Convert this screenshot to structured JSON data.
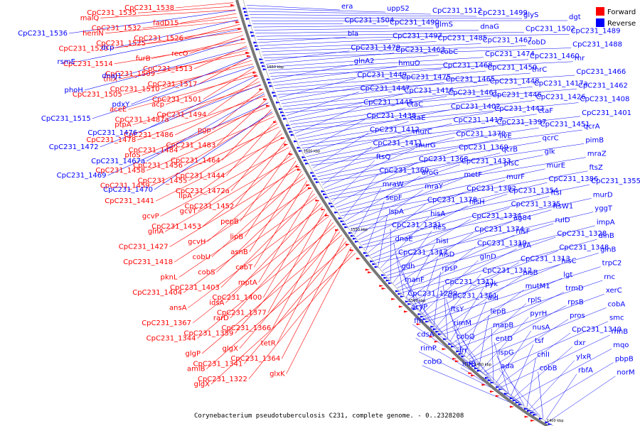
{
  "title": "Corynebacterium pseudotuberculosis C231, complete genome. - 0..2328208",
  "legend": {
    "items": [
      {
        "label": "Forward",
        "color": "#ff0000"
      },
      {
        "label": "Reverse",
        "color": "#0000ff"
      }
    ]
  },
  "colors": {
    "forward": "#ff0000",
    "reverse": "#0000ff",
    "axis": "#777777"
  },
  "ticks": [
    "1650 kbp",
    "1600 kbp",
    "1550 kbp",
    "1500 kbp",
    "1450 kbp",
    "1400 kbp"
  ],
  "forward_labels": [
    "CpC231_1538",
    "CpC231_1535",
    "malQ",
    "fadD15",
    "CpC231_1532",
    "hemN",
    "CpC231_1526",
    "CpC231_1525",
    "CpC231_1520",
    "recO",
    "furB",
    "CpC231_1514",
    "CpC231_1513",
    "CpC231_1509",
    "thiX",
    "CpC231_1517",
    "CpC231_1510",
    "CpC231_1505",
    "CpC231_1501",
    "acp",
    "aceE",
    "CpC231_1494",
    "CpC231_1487a",
    "ptpA",
    "pgp",
    "CpC231_1486",
    "CpC231_1478",
    "CpC231_1483",
    "CpC231_1484",
    "pfoS",
    "CpC231_1464",
    "CpC231_1456",
    "CpC231_1458",
    "CpC231_1444",
    "CpC231_1455",
    "CpC231_1459",
    "CpC231_1472a",
    "lipA",
    "CpC231_1441",
    "CpC231_1452",
    "gcvT",
    "gcvP",
    "pepB",
    "CpC231_1453",
    "glnA",
    "lipB",
    "gcvH",
    "CpC231_1427",
    "asnB",
    "cobU",
    "CpC231_1418",
    "cobT",
    "cobS",
    "pknL",
    "mptA",
    "CpC231_1403",
    "CpC231_1404",
    "CpC231_1400",
    "idsA",
    "ansA",
    "CpC231_1377",
    "rarD",
    "CpC231_1367",
    "CpC231_1366",
    "CpC231_1359",
    "CpC231_1344",
    "tetR",
    "glgX",
    "glgP",
    "CpC231_1364",
    "CpC231_1341",
    "amiB",
    "glxK",
    "CpC231_1322",
    "glgX"
  ],
  "reverse_labels": [
    "CpC231_1536",
    "dcp",
    "rsmE",
    "dnaJ1",
    "phoH",
    "pdxY",
    "CpC231_1515",
    "CpC231_1476",
    "CpC231_1472",
    "CpC231_1467a",
    "CpC231_1469",
    "CpC231_1470"
  ],
  "right_labels": [
    "era",
    "uppS2",
    "CpC231_1512",
    "CpC231_1499",
    "glyS",
    "dgt",
    "CpC231_1504",
    "CpC231_1490",
    "glmS",
    "dnaG",
    "CpC231_1502",
    "CpC231_1489",
    "bla",
    "CpC231_1497",
    "CpC231_1485",
    "CpC231_1467",
    "cobD",
    "CpC231_1488",
    "CpC231_1479",
    "CpC231_1463",
    "cobC",
    "CpC231_1474",
    "CpC231_1460",
    "rnr",
    "glnA2",
    "hmuO",
    "CpC231_1468",
    "CpC231_1450",
    "thrC",
    "CpC231_1466",
    "CpC231_1449",
    "CpC231_1475",
    "CpC231_1465",
    "CpC231_1448",
    "CpC231_1417a",
    "CpC231_1462",
    "CpC231_1447",
    "CpC231_1416",
    "CpC231_1461",
    "CpC231_1446",
    "CpC231_1426",
    "CpC231_1408",
    "CpC231_1445",
    "ctaC",
    "CpC231_1402",
    "CpC231_1442",
    "ctaF",
    "CpC231_1401",
    "CpC231_1438",
    "ctaE",
    "CpC231_1417",
    "CpC231_1397",
    "CpC231_1451",
    "qcrA",
    "CpC231_1412",
    "murC",
    "CpC231_1370",
    "ilvE",
    "qcrC",
    "pimB",
    "CpC231_1411",
    "murG",
    "CpC231_1369",
    "qcrB",
    "glk",
    "mraZ",
    "ftsQ",
    "CpC231_1368",
    "CpC231_1433",
    "plsC",
    "murE",
    "ftsZ",
    "CpC231_1360",
    "aroG",
    "metF",
    "murF",
    "CpC231_1386",
    "CpC231_1355",
    "mraW",
    "mraY",
    "CpC231_1382",
    "CpC231_1354",
    "ftsI",
    "murD",
    "sepF",
    "CpC231_1378",
    "hisH",
    "CpC231_1335",
    "ftsW1",
    "yggT",
    "lspA",
    "hisA",
    "CpC231_1334",
    "ag84",
    "ruID",
    "impA",
    "CpC231_1331",
    "ileS",
    "CpC231_1374",
    "hisF",
    "CpC231_1328",
    "dinB",
    "dnaE",
    "hisI",
    "CpC231_1319",
    "ilvA",
    "CpC231_1348",
    "glnB",
    "CpC231_1317",
    "hisD",
    "glnD",
    "CpC231_1313",
    "hisC",
    "trpC2",
    "gdh",
    "rpsP",
    "CpC231_1312",
    "hisB",
    "lgt",
    "rnc",
    "manF",
    "CpC231_1311",
    "pyk",
    "mutM1",
    "trmD",
    "xerC",
    "CpC231_1299",
    "CpC231_1361",
    "ald",
    "rplS",
    "rpsB",
    "cobA",
    "acyP",
    "ftsY",
    "lepB",
    "pyrH",
    "pros",
    "smc",
    "ffh",
    "rimM",
    "mapB",
    "nusA",
    "CpC231_1340",
    "rnhB",
    "cdsA",
    "cobQ",
    "entD",
    "tsf",
    "dxr",
    "mqo",
    "rimP",
    "frr",
    "ispG",
    "chlI",
    "ylxR",
    "pbpB",
    "cobO",
    "infB",
    "ada",
    "cobB",
    "rbfA",
    "norM"
  ]
}
